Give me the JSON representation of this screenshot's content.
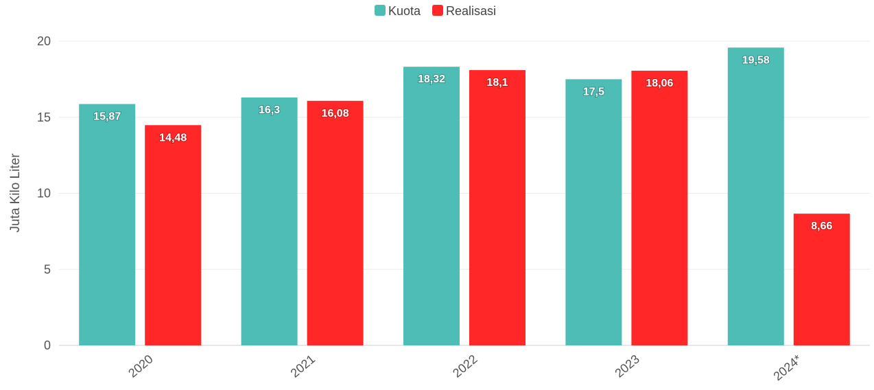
{
  "chart_data": {
    "type": "bar",
    "title": "",
    "xlabel": "",
    "ylabel": "Juta Kilo Liter",
    "categories": [
      "2020",
      "2021",
      "2022",
      "2023",
      "2024*"
    ],
    "series": [
      {
        "name": "Kuota",
        "color": "#4dbdb5",
        "values": [
          15.87,
          16.3,
          18.32,
          17.5,
          19.58
        ],
        "labels": [
          "15,87",
          "16,3",
          "18,32",
          "17,5",
          "19,58"
        ]
      },
      {
        "name": "Realisasi",
        "color": "#ff2727",
        "values": [
          14.48,
          16.08,
          18.1,
          18.06,
          8.66
        ],
        "labels": [
          "14,48",
          "16,08",
          "18,1",
          "18,06",
          "8,66"
        ]
      }
    ],
    "ylim": [
      0,
      20
    ],
    "yticks": [
      "0",
      "5",
      "10",
      "15",
      "20"
    ],
    "grid": true,
    "legend": "top-center"
  }
}
